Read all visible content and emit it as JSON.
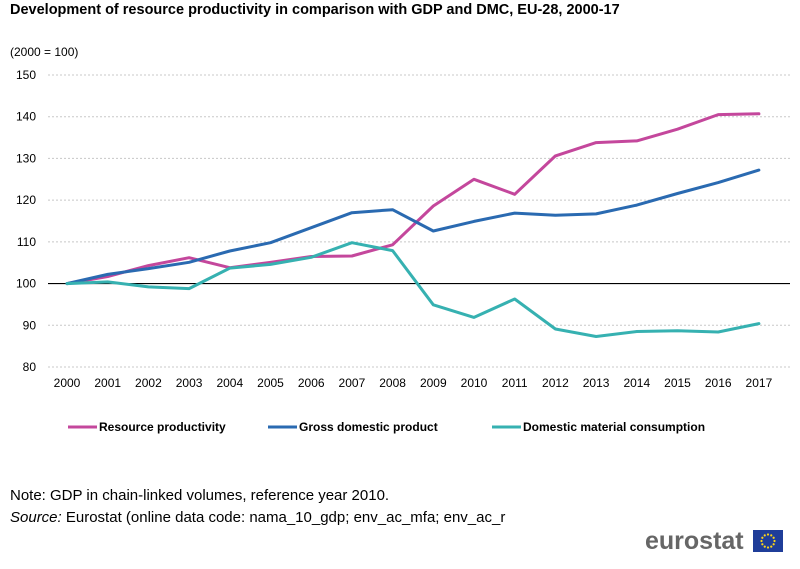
{
  "header": {
    "title": "Development of resource productivity in comparison with GDP and DMC, EU-28, 2000-17",
    "subtitle": "(2000 = 100)"
  },
  "chart_data": {
    "type": "line",
    "title": "Development of resource productivity in comparison with GDP and DMC, EU-28, 2000-17",
    "subtitle": "(2000 = 100)",
    "xlabel": "",
    "ylabel": "",
    "x": [
      "2000",
      "2001",
      "2002",
      "2003",
      "2004",
      "2005",
      "2006",
      "2007",
      "2008",
      "2009",
      "2010",
      "2011",
      "2012",
      "2013",
      "2014",
      "2015",
      "2016",
      "2017"
    ],
    "ylim": [
      80,
      150
    ],
    "yticks": [
      80,
      90,
      100,
      110,
      120,
      130,
      140,
      150
    ],
    "grid": true,
    "legend_position": "bottom",
    "series": [
      {
        "name": "Resource productivity",
        "color": "#c4479c",
        "values": [
          100,
          101.7,
          104.3,
          106.2,
          103.8,
          105.1,
          106.5,
          106.6,
          109.3,
          118.6,
          125.0,
          121.4,
          130.6,
          133.8,
          134.2,
          137.0,
          140.5,
          140.7
        ]
      },
      {
        "name": "Gross domestic product",
        "color": "#2a6ab1",
        "values": [
          100,
          102.2,
          103.6,
          105.1,
          107.8,
          109.8,
          113.4,
          117.0,
          117.7,
          112.6,
          114.9,
          116.9,
          116.4,
          116.7,
          118.8,
          121.6,
          124.2,
          127.2
        ]
      },
      {
        "name": "Domestic material consumption",
        "color": "#36b1b1",
        "values": [
          100,
          100.4,
          99.2,
          98.8,
          103.7,
          104.6,
          106.3,
          109.8,
          107.9,
          94.9,
          91.9,
          96.3,
          89.1,
          87.3,
          88.5,
          88.7,
          88.4,
          90.4
        ]
      }
    ]
  },
  "footer": {
    "note": "Note: GDP in chain-linked volumes, reference year 2010.",
    "source_label": "Source:",
    "source_text": " Eurostat (online data code: nama_10_gdp; env_ac_mfa; env_ac_r",
    "logo": "eurostat"
  },
  "colors": {
    "flag_blue": "#1f3d99",
    "flag_star": "#ffd617",
    "logo_grey": "#666666"
  }
}
